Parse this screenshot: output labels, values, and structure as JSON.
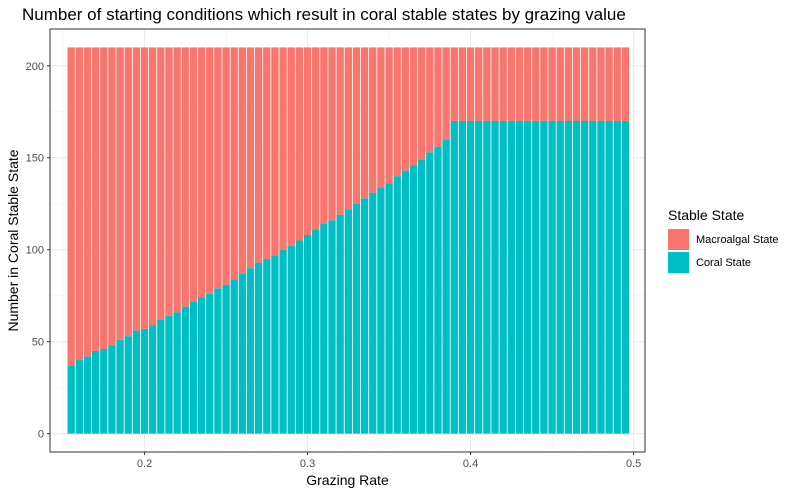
{
  "chart_data": {
    "type": "bar",
    "stacked": true,
    "title": "Number of starting conditions which result in coral stable states by grazing value",
    "xlabel": "Grazing Rate",
    "ylabel": "Number in Coral Stable State",
    "xlim": [
      0.142,
      0.507
    ],
    "ylim": [
      -10,
      220
    ],
    "x_ticks": [
      0.2,
      0.3,
      0.4,
      0.5
    ],
    "x_tick_labels": [
      "0.2",
      "0.3",
      "0.4",
      "0.5"
    ],
    "y_ticks": [
      0,
      50,
      100,
      150,
      200
    ],
    "y_tick_labels": [
      "0",
      "50",
      "100",
      "150",
      "200"
    ],
    "grid": true,
    "legend": {
      "title": "Stable State",
      "position": "right"
    },
    "total_per_bar": 210,
    "x": [
      0.155,
      0.16,
      0.165,
      0.17,
      0.175,
      0.18,
      0.185,
      0.19,
      0.195,
      0.2,
      0.205,
      0.21,
      0.215,
      0.22,
      0.225,
      0.23,
      0.235,
      0.24,
      0.245,
      0.25,
      0.255,
      0.26,
      0.265,
      0.27,
      0.275,
      0.28,
      0.285,
      0.29,
      0.295,
      0.3,
      0.305,
      0.31,
      0.315,
      0.32,
      0.325,
      0.33,
      0.335,
      0.34,
      0.345,
      0.35,
      0.355,
      0.36,
      0.365,
      0.37,
      0.375,
      0.38,
      0.385,
      0.39,
      0.395,
      0.4,
      0.405,
      0.41,
      0.415,
      0.42,
      0.425,
      0.43,
      0.435,
      0.44,
      0.445,
      0.45,
      0.455,
      0.46,
      0.465,
      0.47,
      0.475,
      0.48,
      0.485,
      0.49,
      0.495
    ],
    "series": [
      {
        "name": "Macroalgal State",
        "color": "#F8766D",
        "values": [
          173,
          170,
          168,
          165,
          164,
          162,
          159,
          157,
          154,
          153,
          151,
          148,
          146,
          144,
          141,
          138,
          136,
          134,
          131,
          129,
          126,
          123,
          120,
          117,
          115,
          113,
          110,
          108,
          105,
          102,
          99,
          96,
          94,
          91,
          88,
          85,
          82,
          79,
          76,
          74,
          70,
          67,
          64,
          61,
          57,
          54,
          50,
          40,
          40,
          40,
          40,
          40,
          40,
          40,
          40,
          40,
          40,
          40,
          40,
          40,
          40,
          40,
          40,
          40,
          40,
          40,
          40,
          40,
          40
        ]
      },
      {
        "name": "Coral State",
        "color": "#00BFC4",
        "values": [
          37,
          40,
          42,
          45,
          46,
          48,
          51,
          53,
          56,
          57,
          59,
          62,
          64,
          66,
          69,
          72,
          74,
          76,
          79,
          81,
          84,
          87,
          90,
          93,
          95,
          97,
          100,
          102,
          105,
          108,
          111,
          114,
          116,
          119,
          122,
          125,
          128,
          131,
          134,
          136,
          140,
          143,
          146,
          149,
          153,
          156,
          160,
          170,
          170,
          170,
          170,
          170,
          170,
          170,
          170,
          170,
          170,
          170,
          170,
          170,
          170,
          170,
          170,
          170,
          170,
          170,
          170,
          170,
          170
        ]
      }
    ]
  }
}
